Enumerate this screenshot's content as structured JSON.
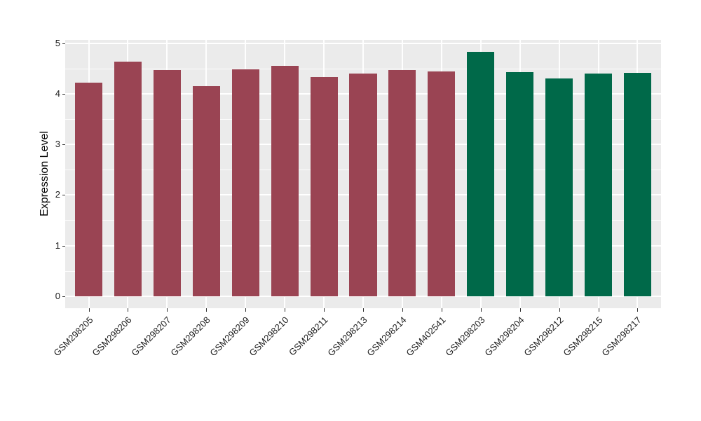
{
  "figure": {
    "background": "#ffffff",
    "panel_background": "#ebebeb",
    "gridline_color": "#ffffff",
    "axis_text_color": "#1a1a1a",
    "axis_title_color": "#000000"
  },
  "chart_data": {
    "type": "bar",
    "title": "",
    "xlabel": "",
    "ylabel": "Expression Level",
    "ylim": [
      0,
      5
    ],
    "yticks": [
      0,
      1,
      2,
      3,
      4,
      5
    ],
    "y_minor_ticks": [
      0.5,
      1.5,
      2.5,
      3.5,
      4.5
    ],
    "grid": true,
    "legend_position": "none",
    "categories": [
      "GSM298205",
      "GSM298206",
      "GSM298207",
      "GSM298208",
      "GSM298209",
      "GSM298210",
      "GSM298211",
      "GSM298213",
      "GSM298214",
      "GSM402541",
      "GSM298203",
      "GSM298204",
      "GSM298212",
      "GSM298215",
      "GSM298217"
    ],
    "values": [
      4.23,
      4.64,
      4.48,
      4.16,
      4.49,
      4.56,
      4.33,
      4.4,
      4.47,
      4.45,
      4.84,
      4.43,
      4.3,
      4.4,
      4.42
    ],
    "groups": [
      "red",
      "red",
      "red",
      "red",
      "red",
      "red",
      "red",
      "red",
      "red",
      "red",
      "green",
      "green",
      "green",
      "green",
      "green"
    ],
    "group_colors": {
      "red": "#9a4453",
      "green": "#006949"
    }
  }
}
